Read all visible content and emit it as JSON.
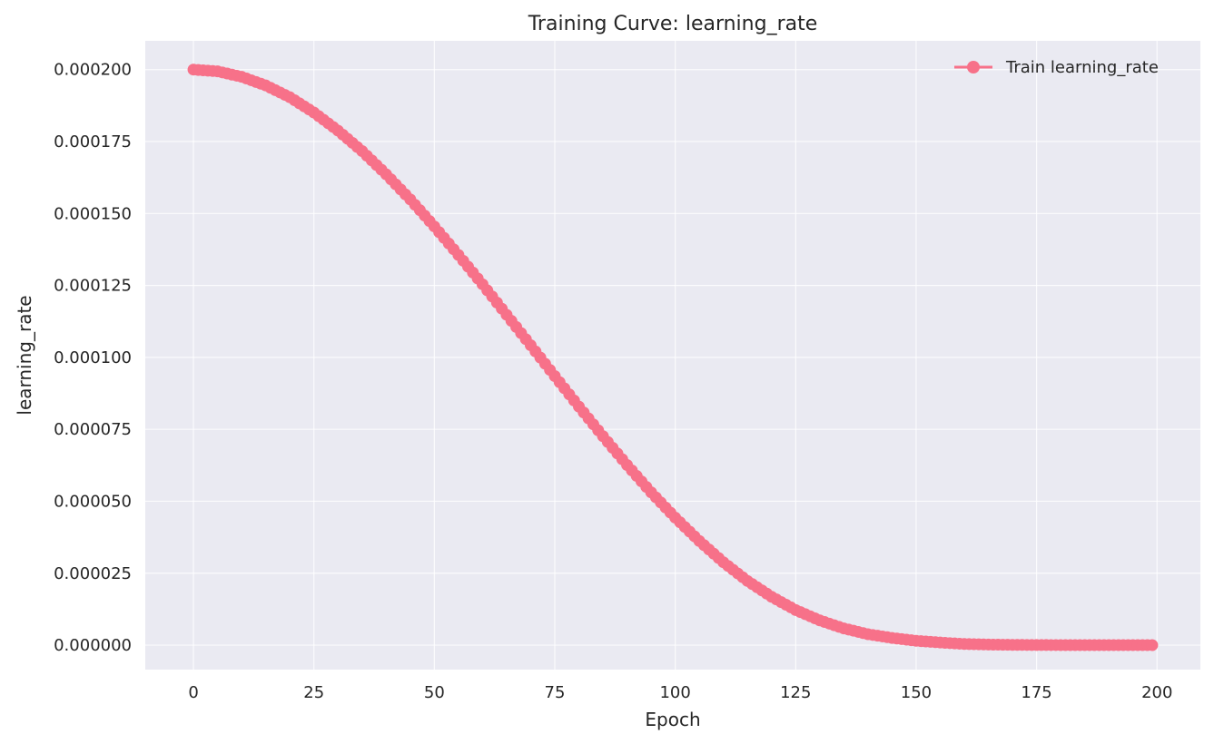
{
  "chart_data": {
    "type": "line",
    "title": "Training Curve: learning_rate",
    "xlabel": "Epoch",
    "ylabel": "learning_rate",
    "xlim": [
      -10,
      209
    ],
    "ylim": [
      -8.5e-06,
      0.00021
    ],
    "xticks": [
      0,
      25,
      50,
      75,
      100,
      125,
      150,
      175,
      200
    ],
    "xtick_labels": [
      "0",
      "25",
      "50",
      "75",
      "100",
      "125",
      "150",
      "175",
      "200"
    ],
    "yticks": [
      0,
      2.5e-05,
      5e-05,
      7.5e-05,
      0.0001,
      0.000125,
      0.00015,
      0.000175,
      0.0002
    ],
    "ytick_labels": [
      "0.000000",
      "0.000025",
      "0.000050",
      "0.000075",
      "0.000100",
      "0.000125",
      "0.000150",
      "0.000175",
      "0.000200"
    ],
    "grid": true,
    "legend_position": "top-right",
    "series": [
      {
        "name": "Train learning_rate",
        "color": "#f77189",
        "marker": "circle",
        "x": [
          0,
          5,
          10,
          15,
          20,
          25,
          30,
          35,
          40,
          45,
          50,
          55,
          60,
          65,
          70,
          75,
          80,
          85,
          90,
          95,
          100,
          105,
          110,
          115,
          120,
          125,
          130,
          135,
          140,
          145,
          150,
          155,
          160,
          165,
          170,
          175,
          180,
          185,
          190,
          195,
          199
        ],
        "y": [
          0.0002,
          0.0001994,
          0.0001975,
          0.0001945,
          0.0001904,
          0.0001851,
          0.0001788,
          0.0001717,
          0.0001636,
          0.0001549,
          0.0001455,
          0.0001356,
          0.0001254,
          0.0001148,
          0.0001042,
          9.35e-05,
          8.29e-05,
          7.26e-05,
          6.26e-05,
          5.31e-05,
          4.43e-05,
          3.62e-05,
          2.88e-05,
          2.23e-05,
          1.68e-05,
          1.22e-05,
          8.6e-06,
          5.8e-06,
          3.8e-06,
          2.5e-06,
          1.5e-06,
          9e-07,
          4e-07,
          2e-07,
          1e-07,
          5e-08,
          2e-08,
          1e-08,
          5e-09,
          2e-09,
          1e-09
        ]
      }
    ]
  }
}
